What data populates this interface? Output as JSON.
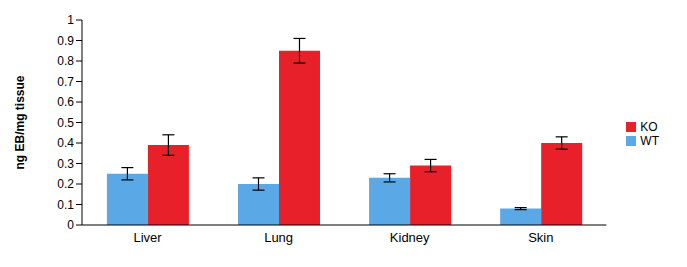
{
  "chart_data": {
    "type": "bar",
    "y_label": "ng EB/mg tissue",
    "categories": [
      "Liver",
      "Lung",
      "Kidney",
      "Skin"
    ],
    "series": [
      {
        "name": "WT",
        "color": "#5aa9e6",
        "values": [
          0.25,
          0.2,
          0.23,
          0.08
        ],
        "errors": [
          0.03,
          0.03,
          0.02,
          0.005
        ]
      },
      {
        "name": "KO",
        "color": "#e8202a",
        "values": [
          0.39,
          0.85,
          0.29,
          0.4
        ],
        "errors": [
          0.05,
          0.06,
          0.03,
          0.03
        ]
      }
    ],
    "ylim": [
      0,
      1
    ],
    "yticks": [
      0,
      0.1,
      0.2,
      0.3,
      0.4,
      0.5,
      0.6,
      0.7,
      0.8,
      0.9,
      1
    ],
    "grid": false,
    "legend": "right"
  }
}
